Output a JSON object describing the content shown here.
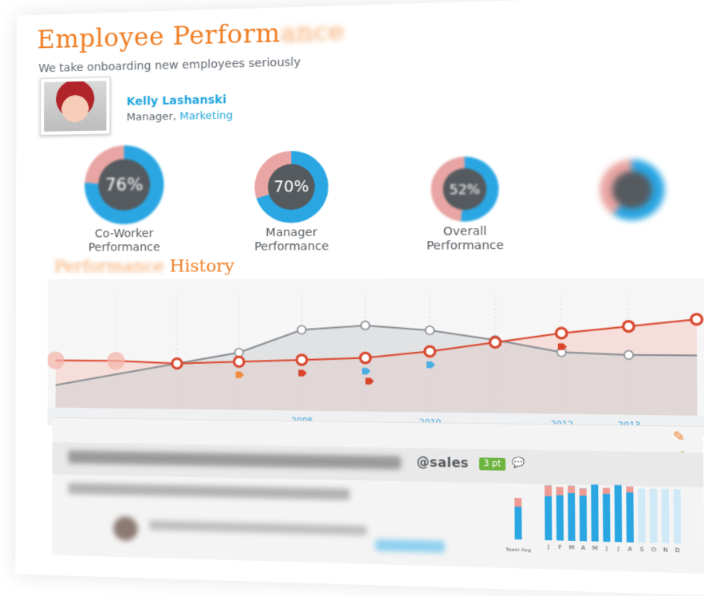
{
  "header": {
    "title_main": "Employee Perform",
    "title_fade": "ance",
    "subtitle": "We take onboarding new employees seriously"
  },
  "profile": {
    "name": "Kelly Lashanski",
    "role": "Manager,",
    "department": "Marketing"
  },
  "gauges": [
    {
      "label_line1": "Co-Worker",
      "label_line2": "Performance",
      "value": 76,
      "text": "76%",
      "blur": 1.2
    },
    {
      "label_line1": "Manager",
      "label_line2": "Performance",
      "value": 70,
      "text": "70%",
      "blur": 0
    },
    {
      "label_line1": "Overall",
      "label_line2": "Performance",
      "value": 52,
      "text": "52%",
      "blur": 1.0
    },
    {
      "label_line1": "",
      "label_line2": "",
      "value": 60,
      "text": "",
      "blur": 3.5
    }
  ],
  "history": {
    "title_fade": "Performance",
    "title_main": " History"
  },
  "chart_data": {
    "type": "line",
    "x": [
      "",
      "",
      "",
      "",
      "2008",
      "",
      "2010",
      "",
      "2012",
      "2013",
      ""
    ],
    "series": [
      {
        "values": [
          0.42,
          0.42,
          0.4,
          0.42,
          0.44,
          0.46,
          0.52,
          0.6,
          0.68,
          0.74,
          0.8
        ]
      },
      {
        "values": [
          0.2,
          0.3,
          0.4,
          0.5,
          0.7,
          0.74,
          0.7,
          0.62,
          0.52,
          0.5,
          0.5
        ]
      }
    ],
    "colors": {
      "red": "#d9442b",
      "grey": "#8a8e93",
      "blue": "#4aaee3"
    }
  },
  "feed": {
    "mention": "@sales",
    "points": "3 pt",
    "icons": [
      "pencil-icon",
      "check-icon",
      "chat-icon"
    ]
  },
  "monthly": {
    "team_label": "Team Avg",
    "months": [
      "J",
      "F",
      "M",
      "A",
      "M",
      "J",
      "J",
      "A",
      "S",
      "O",
      "N",
      "D"
    ],
    "values": [
      0.92,
      0.9,
      0.92,
      0.88,
      0.95,
      0.9,
      0.95,
      0.93,
      0.9,
      0.9,
      0.9,
      0.9
    ],
    "pink": [
      0.18,
      0.14,
      0.12,
      0.12,
      0.0,
      0.1,
      0.0,
      0.1,
      0,
      0,
      0,
      0
    ],
    "team_value": 0.7,
    "team_pink": 0.15
  }
}
